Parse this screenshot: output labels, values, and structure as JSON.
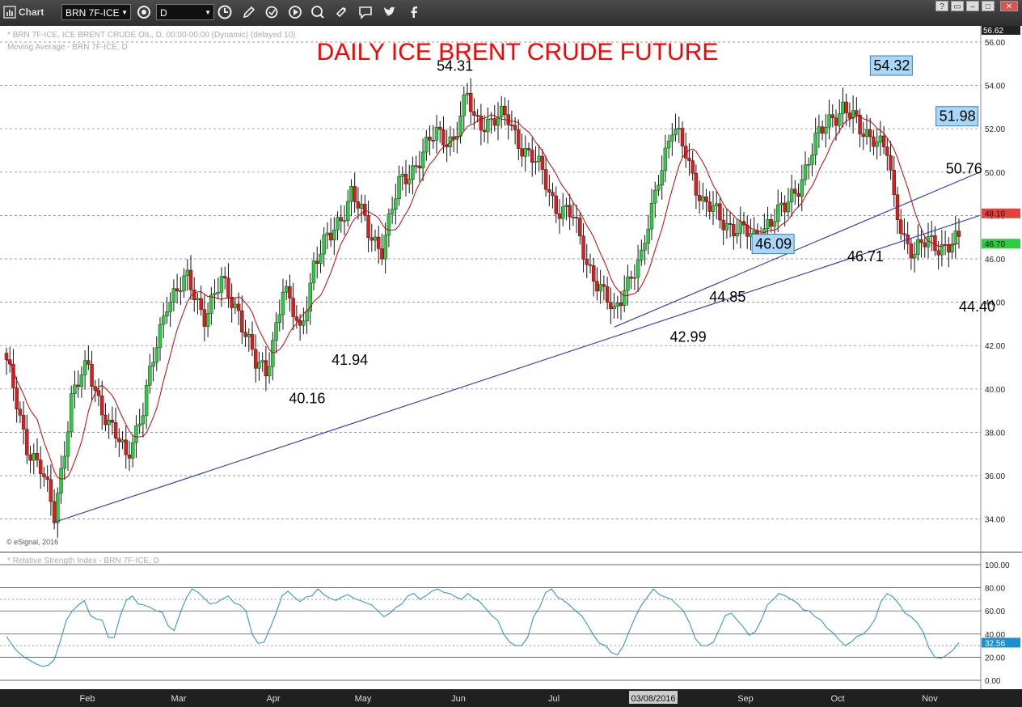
{
  "toolbar": {
    "app_label": "Chart",
    "symbol": "BRN 7F-ICE",
    "interval": "D",
    "help": "?"
  },
  "price_panel": {
    "header_line1": "* BRN 7F-ICE, ICE BRENT CRUDE OIL, D, 00:00-00:00 (Dynamic) (delayed 10)",
    "header_line2": "Moving Average - BRN 7F-ICE, D",
    "copyright": "© eSignal, 2016"
  },
  "rsi_panel": {
    "header": "* Relative Strength Index - BRN 7F-ICE, D"
  },
  "chart_data": [
    {
      "type": "candlestick",
      "title": "DAILY ICE BRENT CRUDE FUTURE",
      "ylim": [
        33.5,
        56.62
      ],
      "yticks": [
        "56.00",
        "54.00",
        "52.00",
        "50.00",
        "48.00",
        "46.00",
        "44.00",
        "42.00",
        "40.00",
        "38.00",
        "36.00",
        "34.00"
      ],
      "top_label": "56.62",
      "price_tags": [
        {
          "value": 48.1,
          "text": "48.10",
          "color": "#e8413c"
        },
        {
          "value": 46.7,
          "text": "46.70",
          "color": "#2ecc40"
        }
      ],
      "xticks": [
        "Feb",
        "Mar",
        "Apr",
        "May",
        "Jun",
        "Jul",
        "03/08/2016",
        "Sep",
        "Oct",
        "Nov"
      ],
      "annotations": [
        {
          "text": "54.31",
          "value": 54.31,
          "boxed": false
        },
        {
          "text": "54.32",
          "value": 54.32,
          "boxed": true
        },
        {
          "text": "51.98",
          "value": 51.98,
          "boxed": true
        },
        {
          "text": "50.76",
          "value": 50.76,
          "boxed": false
        },
        {
          "text": "46.09",
          "value": 46.09,
          "boxed": true
        },
        {
          "text": "46.71",
          "value": 46.71,
          "boxed": false
        },
        {
          "text": "44.85",
          "value": 44.85,
          "boxed": false
        },
        {
          "text": "44.40",
          "value": 44.4,
          "boxed": false
        },
        {
          "text": "42.99",
          "value": 42.99,
          "boxed": false
        },
        {
          "text": "41.94",
          "value": 41.94,
          "boxed": false
        },
        {
          "text": "40.16",
          "value": 40.16,
          "boxed": false
        }
      ],
      "ohlc_anchors": [
        [
          0,
          41.1
        ],
        [
          6,
          37.5
        ],
        [
          10,
          36.2
        ],
        [
          14,
          34.2
        ],
        [
          19,
          39.5
        ],
        [
          24,
          41.1
        ],
        [
          30,
          38.2
        ],
        [
          35,
          37.0
        ],
        [
          40,
          39.0
        ],
        [
          47,
          44.2
        ],
        [
          53,
          44.9
        ],
        [
          58,
          43.5
        ],
        [
          63,
          44.8
        ],
        [
          68,
          43.7
        ],
        [
          73,
          41.0
        ],
        [
          76,
          40.8
        ],
        [
          81,
          44.6
        ],
        [
          86,
          42.6
        ],
        [
          90,
          45.8
        ],
        [
          95,
          47.0
        ],
        [
          101,
          49.1
        ],
        [
          106,
          47.2
        ],
        [
          110,
          46.6
        ],
        [
          115,
          49.3
        ],
        [
          120,
          50.5
        ],
        [
          126,
          51.7
        ],
        [
          131,
          51.6
        ],
        [
          135,
          53.4
        ],
        [
          137,
          52.4
        ],
        [
          142,
          52.4
        ],
        [
          147,
          52.4
        ],
        [
          152,
          51.0
        ],
        [
          157,
          49.9
        ],
        [
          161,
          48.5
        ],
        [
          166,
          47.8
        ],
        [
          170,
          46.0
        ],
        [
          175,
          44.2
        ],
        [
          178,
          43.4
        ],
        [
          181,
          44.9
        ],
        [
          186,
          45.8
        ],
        [
          191,
          50.0
        ],
        [
          195,
          51.9
        ],
        [
          199,
          50.9
        ],
        [
          204,
          48.6
        ],
        [
          209,
          47.8
        ],
        [
          214,
          47.5
        ],
        [
          219,
          46.8
        ],
        [
          223,
          47.8
        ],
        [
          228,
          48.2
        ],
        [
          232,
          49.5
        ],
        [
          237,
          51.3
        ],
        [
          242,
          52.7
        ],
        [
          245,
          53.0
        ],
        [
          250,
          51.9
        ],
        [
          254,
          51.8
        ],
        [
          258,
          50.8
        ],
        [
          260,
          48.5
        ],
        [
          263,
          47.1
        ],
        [
          266,
          46.3
        ],
        [
          270,
          46.7
        ]
      ],
      "ma_series": {
        "name": "Moving Average",
        "color": "#cc0000"
      },
      "trendlines": [
        {
          "from": [
            14,
            33.85
          ],
          "to": [
            278,
            48.0
          ]
        },
        {
          "from": [
            178,
            42.85
          ],
          "to": [
            278,
            50.0
          ]
        }
      ]
    },
    {
      "type": "line",
      "title": "Relative Strength Index",
      "ylim": [
        0,
        100
      ],
      "yticks": [
        "100.00",
        "80.00",
        "60.00",
        "40.00",
        "20.00",
        "0.00"
      ],
      "last_value": 32.56,
      "last_label": "32.56",
      "values": [
        38,
        30,
        24,
        20,
        17,
        14,
        12,
        13,
        18,
        34,
        52,
        60,
        65,
        69,
        56,
        53,
        52,
        37,
        37,
        56,
        69,
        73,
        66,
        65,
        63,
        60,
        59,
        47,
        43,
        58,
        71,
        79,
        76,
        71,
        66,
        67,
        70,
        73,
        67,
        65,
        60,
        40,
        32,
        33,
        45,
        58,
        73,
        77,
        72,
        68,
        72,
        73,
        79,
        74,
        71,
        69,
        72,
        74,
        71,
        69,
        67,
        65,
        60,
        55,
        58,
        63,
        66,
        73,
        75,
        70,
        73,
        77,
        79,
        76,
        75,
        72,
        70,
        75,
        71,
        68,
        62,
        56,
        52,
        40,
        33,
        30,
        30,
        37,
        55,
        63,
        76,
        79,
        72,
        69,
        65,
        60,
        56,
        48,
        39,
        32,
        30,
        24,
        22,
        30,
        43,
        55,
        65,
        72,
        79,
        74,
        72,
        70,
        65,
        60,
        50,
        36,
        30,
        30,
        33,
        44,
        56,
        58,
        52,
        46,
        39,
        42,
        52,
        65,
        70,
        75,
        73,
        70,
        67,
        61,
        60,
        55,
        52,
        45,
        41,
        35,
        30,
        33,
        38,
        40,
        45,
        53,
        68,
        75,
        72,
        66,
        58,
        55,
        50,
        42,
        28,
        20,
        19,
        22,
        26,
        32.56
      ]
    }
  ]
}
